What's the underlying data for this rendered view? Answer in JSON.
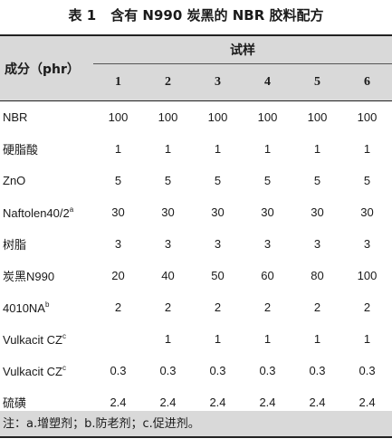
{
  "title": {
    "number": "表 1",
    "text": "含有 N990 炭黑的 NBR 胶料配方"
  },
  "header": {
    "component_label": "成分（phr）",
    "sample_label": "试样",
    "columns": [
      "1",
      "2",
      "3",
      "4",
      "5",
      "6"
    ]
  },
  "rows": [
    {
      "name": "NBR",
      "sup": "",
      "values": [
        "100",
        "100",
        "100",
        "100",
        "100",
        "100"
      ]
    },
    {
      "name": "硬脂酸",
      "sup": "",
      "values": [
        "1",
        "1",
        "1",
        "1",
        "1",
        "1"
      ]
    },
    {
      "name": "ZnO",
      "sup": "",
      "values": [
        "5",
        "5",
        "5",
        "5",
        "5",
        "5"
      ]
    },
    {
      "name": "Naftolen40/2",
      "sup": "a",
      "values": [
        "30",
        "30",
        "30",
        "30",
        "30",
        "30"
      ]
    },
    {
      "name": "树脂",
      "sup": "",
      "values": [
        "3",
        "3",
        "3",
        "3",
        "3",
        "3"
      ]
    },
    {
      "name": "炭黑N990",
      "sup": "",
      "values": [
        "20",
        "40",
        "50",
        "60",
        "80",
        "100"
      ]
    },
    {
      "name": "4010NA",
      "sup": "b",
      "values": [
        "2",
        "2",
        "2",
        "2",
        "2",
        "2"
      ]
    },
    {
      "name": "Vulkacit CZ",
      "sup": "c",
      "values": [
        "",
        "1",
        "1",
        "1",
        "1",
        "1"
      ]
    },
    {
      "name": "Vulkacit CZ",
      "sup": "c",
      "values": [
        "0.3",
        "0.3",
        "0.3",
        "0.3",
        "0.3",
        "0.3"
      ]
    },
    {
      "name": "硫磺",
      "sup": "",
      "values": [
        "2.4",
        "2.4",
        "2.4",
        "2.4",
        "2.4",
        "2.4"
      ]
    }
  ],
  "note": "注：a.增塑剂；b.防老剂；c.促进剂。"
}
